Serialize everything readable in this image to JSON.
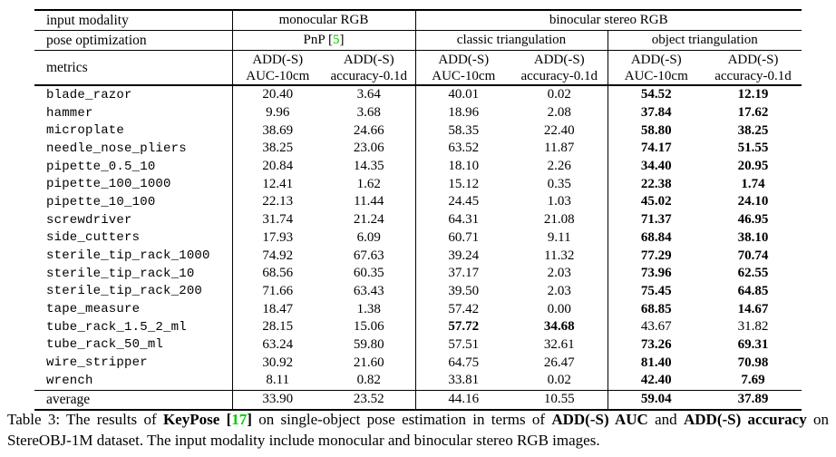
{
  "colors": {
    "citation_green": "#00cc00"
  },
  "table": {
    "header": {
      "row1": {
        "label": "input modality",
        "mono": "monocular RGB",
        "bino": "binocular stereo RGB"
      },
      "row2": {
        "label": "pose optimization",
        "pnp_text": "PnP ",
        "pnp_open": "[",
        "pnp_num": "5",
        "pnp_close": "]",
        "classic": "classic triangulation",
        "object": "object triangulation"
      },
      "row3": {
        "label": "metrics",
        "metric_top": "ADD(-S)",
        "auc": "AUC-10cm",
        "acc": "accuracy-0.1d"
      }
    },
    "rows": [
      {
        "name": "blade_razor",
        "values": [
          "20.40",
          "3.64",
          "40.01",
          "0.02",
          "54.52",
          "12.19"
        ],
        "bold": [
          false,
          false,
          false,
          false,
          true,
          true
        ]
      },
      {
        "name": "hammer",
        "values": [
          "9.96",
          "3.68",
          "18.96",
          "2.08",
          "37.84",
          "17.62"
        ],
        "bold": [
          false,
          false,
          false,
          false,
          true,
          true
        ]
      },
      {
        "name": "microplate",
        "values": [
          "38.69",
          "24.66",
          "58.35",
          "22.40",
          "58.80",
          "38.25"
        ],
        "bold": [
          false,
          false,
          false,
          false,
          true,
          true
        ]
      },
      {
        "name": "needle_nose_pliers",
        "values": [
          "38.25",
          "23.06",
          "63.52",
          "11.87",
          "74.17",
          "51.55"
        ],
        "bold": [
          false,
          false,
          false,
          false,
          true,
          true
        ]
      },
      {
        "name": "pipette_0.5_10",
        "values": [
          "20.84",
          "14.35",
          "18.10",
          "2.26",
          "34.40",
          "20.95"
        ],
        "bold": [
          false,
          false,
          false,
          false,
          true,
          true
        ]
      },
      {
        "name": "pipette_100_1000",
        "values": [
          "12.41",
          "1.62",
          "15.12",
          "0.35",
          "22.38",
          "1.74"
        ],
        "bold": [
          false,
          false,
          false,
          false,
          true,
          true
        ]
      },
      {
        "name": "pipette_10_100",
        "values": [
          "22.13",
          "11.44",
          "24.45",
          "1.03",
          "45.02",
          "24.10"
        ],
        "bold": [
          false,
          false,
          false,
          false,
          true,
          true
        ]
      },
      {
        "name": "screwdriver",
        "values": [
          "31.74",
          "21.24",
          "64.31",
          "21.08",
          "71.37",
          "46.95"
        ],
        "bold": [
          false,
          false,
          false,
          false,
          true,
          true
        ]
      },
      {
        "name": "side_cutters",
        "values": [
          "17.93",
          "6.09",
          "60.71",
          "9.11",
          "68.84",
          "38.10"
        ],
        "bold": [
          false,
          false,
          false,
          false,
          true,
          true
        ]
      },
      {
        "name": "sterile_tip_rack_1000",
        "values": [
          "74.92",
          "67.63",
          "39.24",
          "11.32",
          "77.29",
          "70.74"
        ],
        "bold": [
          false,
          false,
          false,
          false,
          true,
          true
        ]
      },
      {
        "name": "sterile_tip_rack_10",
        "values": [
          "68.56",
          "60.35",
          "37.17",
          "2.03",
          "73.96",
          "62.55"
        ],
        "bold": [
          false,
          false,
          false,
          false,
          true,
          true
        ]
      },
      {
        "name": "sterile_tip_rack_200",
        "values": [
          "71.66",
          "63.43",
          "39.50",
          "2.03",
          "75.45",
          "64.85"
        ],
        "bold": [
          false,
          false,
          false,
          false,
          true,
          true
        ]
      },
      {
        "name": "tape_measure",
        "values": [
          "18.47",
          "1.38",
          "57.42",
          "0.00",
          "68.85",
          "14.67"
        ],
        "bold": [
          false,
          false,
          false,
          false,
          true,
          true
        ]
      },
      {
        "name": "tube_rack_1.5_2_ml",
        "values": [
          "28.15",
          "15.06",
          "57.72",
          "34.68",
          "43.67",
          "31.82"
        ],
        "bold": [
          false,
          false,
          true,
          true,
          false,
          false
        ]
      },
      {
        "name": "tube_rack_50_ml",
        "values": [
          "63.24",
          "59.80",
          "57.51",
          "32.61",
          "73.26",
          "69.31"
        ],
        "bold": [
          false,
          false,
          false,
          false,
          true,
          true
        ]
      },
      {
        "name": "wire_stripper",
        "values": [
          "30.92",
          "21.60",
          "64.75",
          "26.47",
          "81.40",
          "70.98"
        ],
        "bold": [
          false,
          false,
          false,
          false,
          true,
          true
        ]
      },
      {
        "name": "wrench",
        "values": [
          "8.11",
          "0.82",
          "33.81",
          "0.02",
          "42.40",
          "7.69"
        ],
        "bold": [
          false,
          false,
          false,
          false,
          true,
          true
        ]
      }
    ],
    "average": {
      "name": "average",
      "values": [
        "33.90",
        "23.52",
        "44.16",
        "10.55",
        "59.04",
        "37.89"
      ],
      "bold": [
        false,
        false,
        false,
        false,
        true,
        true
      ]
    }
  },
  "caption": {
    "segments": [
      {
        "text": "Table 3: The results of ",
        "bold": false,
        "green": false
      },
      {
        "text": "KeyPose",
        "bold": true,
        "green": false
      },
      {
        "text": " ",
        "bold": false,
        "green": false
      },
      {
        "text": "[",
        "bold": true,
        "green": false
      },
      {
        "text": "17",
        "bold": true,
        "green": true
      },
      {
        "text": "]",
        "bold": true,
        "green": false
      },
      {
        "text": " on single-object pose estimation in terms of ",
        "bold": false,
        "green": false
      },
      {
        "text": "ADD(-S) AUC",
        "bold": true,
        "green": false
      },
      {
        "text": " and ",
        "bold": false,
        "green": false
      },
      {
        "text": "ADD(-S) accuracy",
        "bold": true,
        "green": false
      },
      {
        "text": " on StereOBJ-1M dataset. The input modality include monocular and binocular stereo RGB images.",
        "bold": false,
        "green": false
      }
    ]
  }
}
